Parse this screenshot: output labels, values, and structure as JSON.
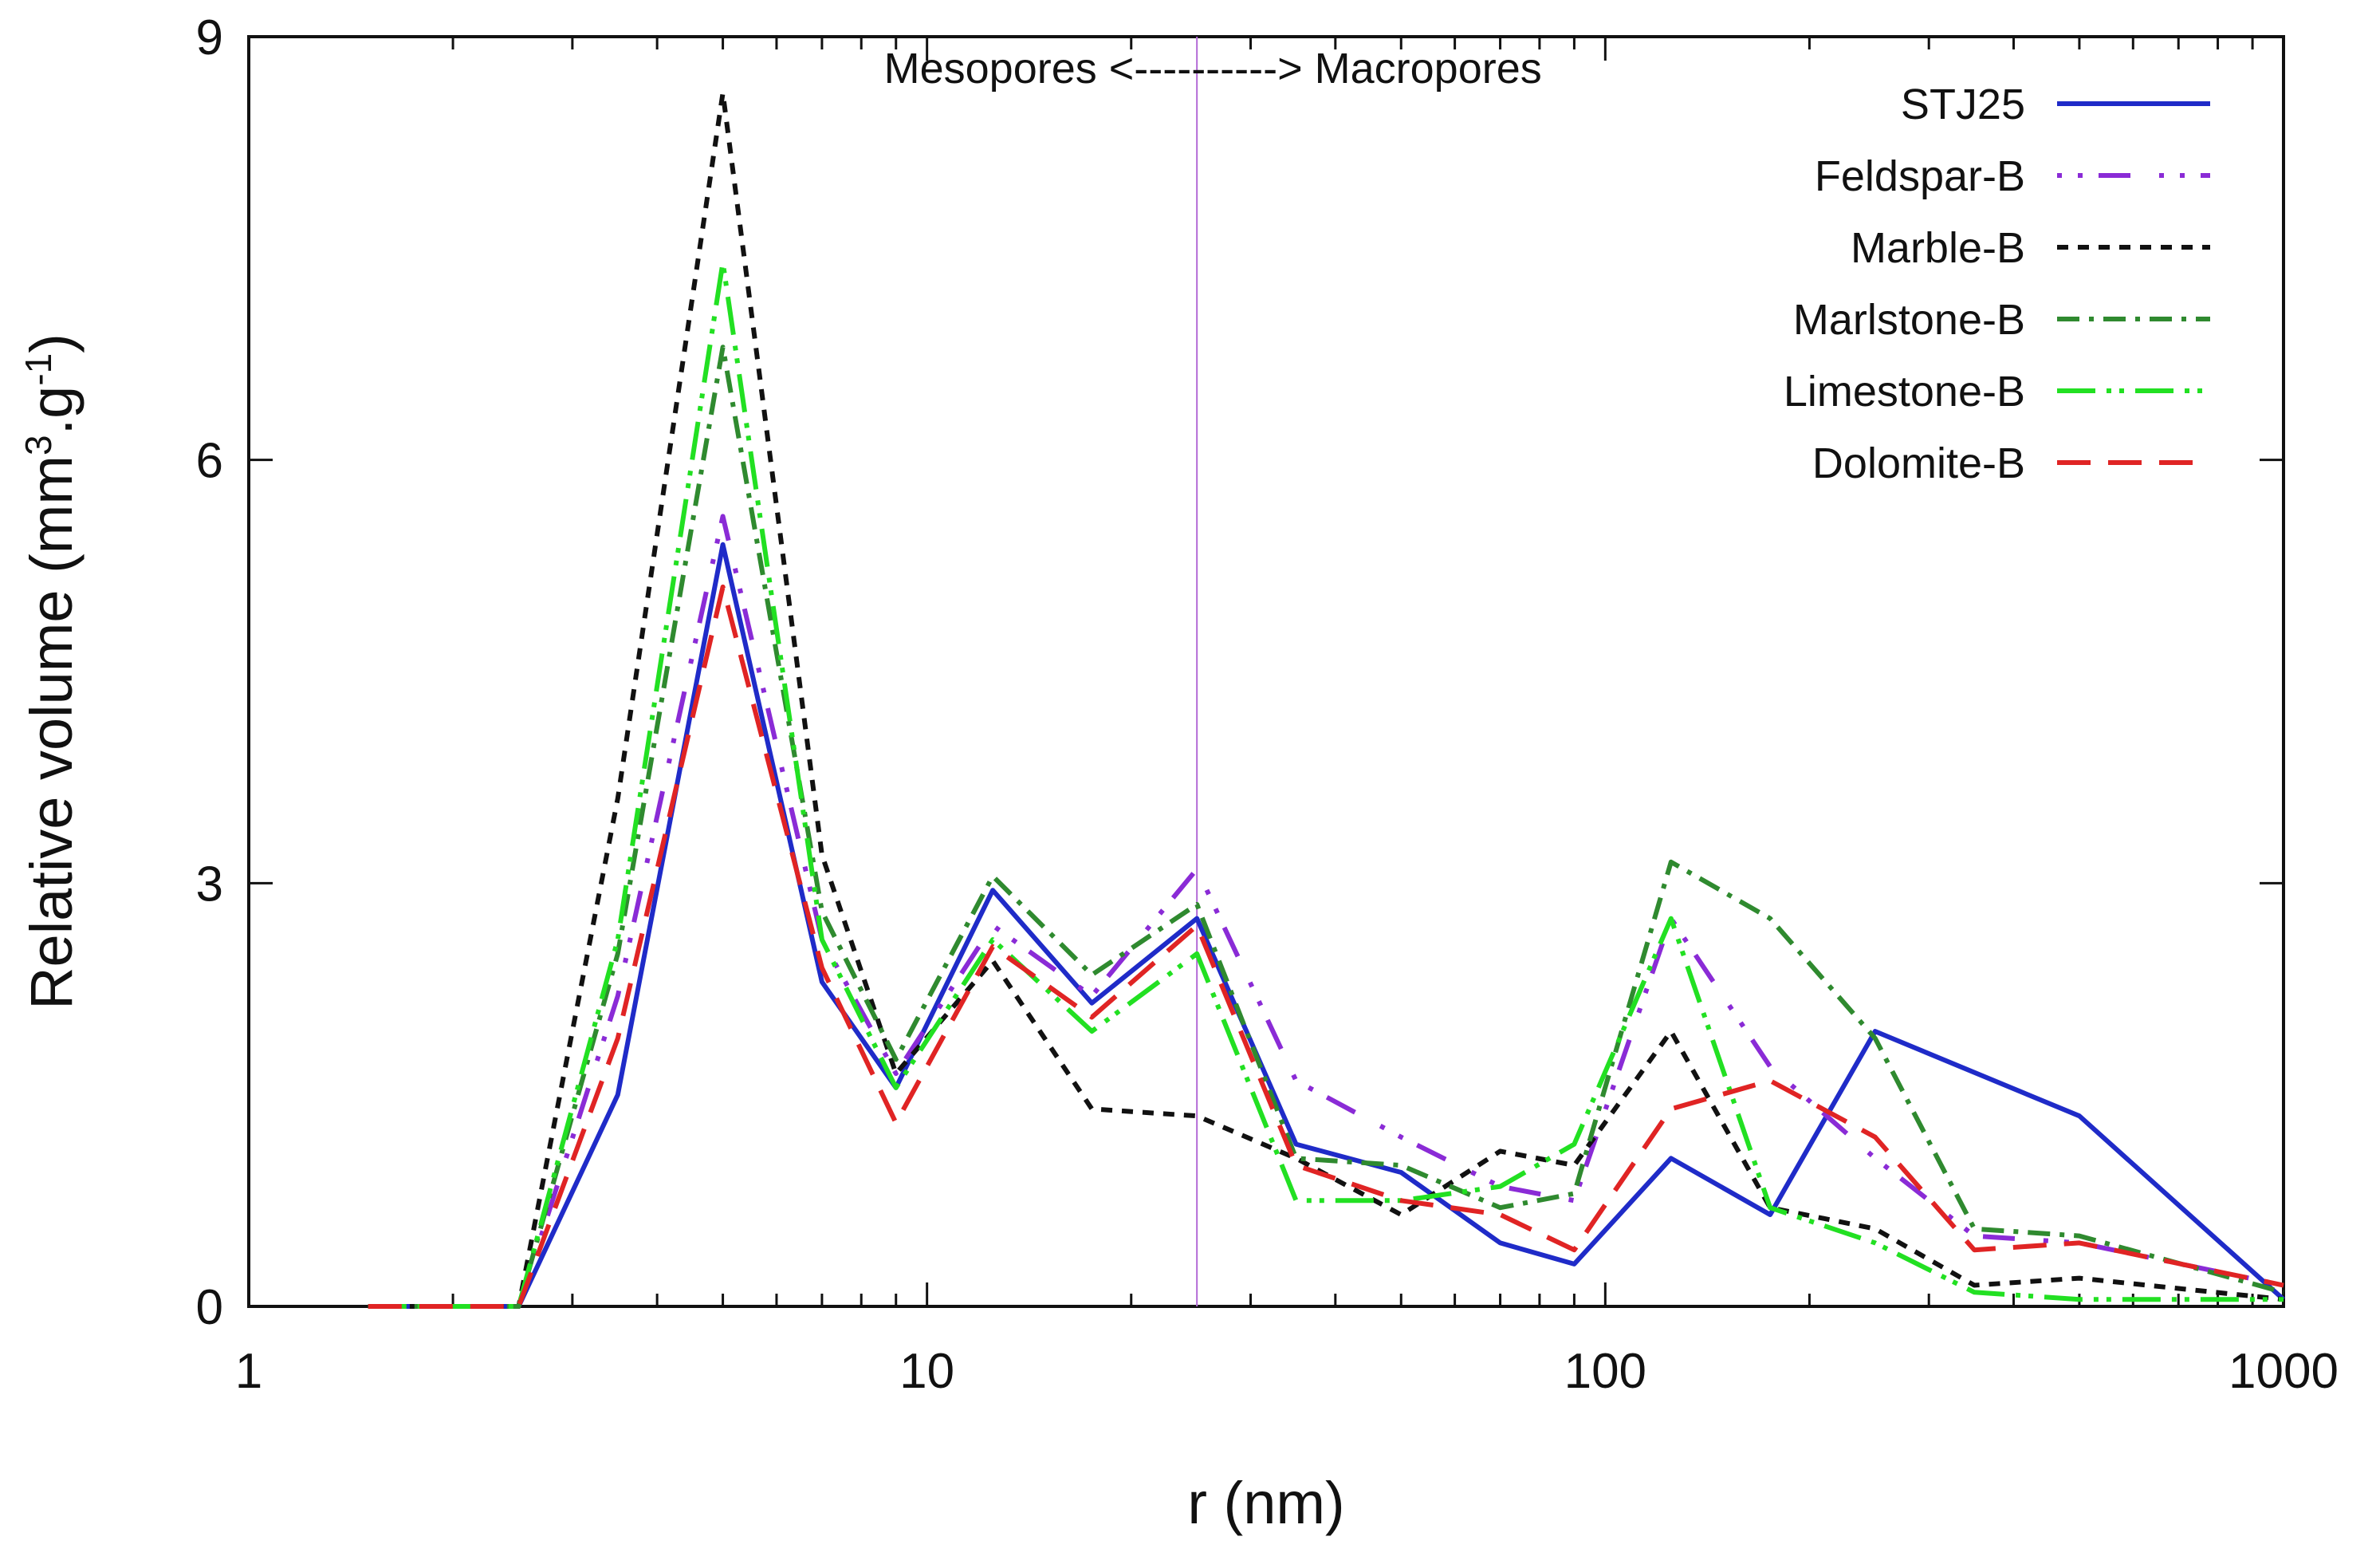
{
  "chart_data": {
    "type": "line",
    "xscale": "log",
    "xlabel": "r (nm)",
    "ylabel_main": "Relative volume (mm",
    "ylabel_sup1": "3",
    "ylabel_mid": ".g",
    "ylabel_sup2": "-1",
    "ylabel_end": ")",
    "xlim": [
      1,
      1000
    ],
    "ylim": [
      0,
      9
    ],
    "xticks": [
      1,
      10,
      100,
      1000
    ],
    "xtick_labels": [
      "1",
      "10",
      "100",
      "1000"
    ],
    "yticks": [
      0,
      3,
      6,
      9
    ],
    "ytick_labels": [
      "0",
      "3",
      "6",
      "9"
    ],
    "annotation": "Mesopores <----------> Macropores",
    "divider_x": 25,
    "divider_color": "#b36ad6",
    "legend_position": "top-right",
    "series": [
      {
        "name": "STJ25",
        "color": "#1f2bc8",
        "dash": "none",
        "x": [
          1.5,
          2.5,
          3.5,
          5,
          7,
          9,
          12.5,
          17.5,
          25,
          35,
          50,
          70,
          90,
          125,
          175,
          250,
          500,
          1000
        ],
        "y": [
          0,
          0,
          1.5,
          5.4,
          2.3,
          1.55,
          2.95,
          2.15,
          2.75,
          1.15,
          0.95,
          0.45,
          0.3,
          1.05,
          0.65,
          1.95,
          1.35,
          0.05
        ]
      },
      {
        "name": "Feldspar-B",
        "color": "#8a2bd6",
        "dash": "6 20 6 20 40 36",
        "x": [
          1.5,
          2.5,
          3.5,
          5,
          7,
          9,
          12.5,
          17.5,
          25,
          35,
          50,
          70,
          90,
          125,
          175,
          250,
          350,
          500,
          1000
        ],
        "y": [
          0,
          0,
          2.2,
          5.6,
          2.6,
          1.65,
          2.7,
          2.2,
          3.1,
          1.6,
          1.2,
          0.85,
          0.75,
          2.75,
          1.7,
          1.05,
          0.5,
          0.45,
          0.15
        ]
      },
      {
        "name": "Marble-B",
        "color": "#111111",
        "dash": "14 12",
        "x": [
          1.5,
          2.5,
          3.5,
          5,
          7,
          9,
          12.5,
          17.5,
          25,
          35,
          50,
          70,
          90,
          125,
          175,
          250,
          350,
          500,
          1000
        ],
        "y": [
          0,
          0,
          3.6,
          8.6,
          3.2,
          1.65,
          2.45,
          1.4,
          1.35,
          1.05,
          0.65,
          1.1,
          1.0,
          1.95,
          0.7,
          0.55,
          0.15,
          0.2,
          0.05
        ]
      },
      {
        "name": "Marlstone-B",
        "color": "#2f8a2f",
        "dash": "28 12 6 12",
        "x": [
          1.5,
          2.5,
          3.5,
          5,
          7,
          9,
          12.5,
          17.5,
          25,
          35,
          50,
          70,
          90,
          125,
          175,
          250,
          350,
          500,
          1000
        ],
        "y": [
          0,
          0,
          2.5,
          6.8,
          2.8,
          1.75,
          3.05,
          2.35,
          2.85,
          1.05,
          1.0,
          0.7,
          0.8,
          3.15,
          2.75,
          1.9,
          0.55,
          0.5,
          0.1
        ]
      },
      {
        "name": "Limestone-B",
        "color": "#22e022",
        "dash": "48 14 6 10 6 14",
        "x": [
          1.5,
          2.5,
          3.5,
          5,
          7,
          9,
          12.5,
          17.5,
          25,
          35,
          50,
          70,
          90,
          125,
          175,
          250,
          350,
          500,
          1000
        ],
        "y": [
          0,
          0,
          2.6,
          7.4,
          2.6,
          1.55,
          2.6,
          1.95,
          2.5,
          0.75,
          0.75,
          0.85,
          1.15,
          2.75,
          0.7,
          0.45,
          0.1,
          0.05,
          0.05
        ]
      },
      {
        "name": "Dolomite-B",
        "color": "#e02424",
        "dash": "42 22",
        "x": [
          1.5,
          2.5,
          3.5,
          5,
          7,
          9,
          12.5,
          17.5,
          25,
          35,
          50,
          70,
          90,
          125,
          175,
          250,
          350,
          500,
          1000
        ],
        "y": [
          0,
          0,
          1.9,
          5.1,
          2.4,
          1.3,
          2.55,
          2.05,
          2.7,
          1.0,
          0.75,
          0.65,
          0.4,
          1.4,
          1.6,
          1.2,
          0.4,
          0.45,
          0.15
        ]
      }
    ]
  }
}
